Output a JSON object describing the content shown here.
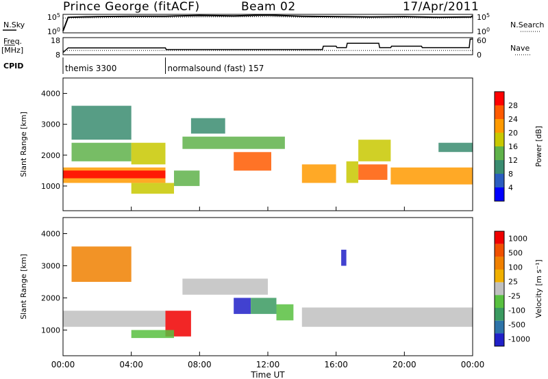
{
  "header": {
    "station": "Prince George (fitACF)",
    "beam": "Beam 02",
    "date": "17/Apr/2011"
  },
  "panel_labels": {
    "nsky": "N.Sky",
    "nsearch": "N.Search",
    "freq": "Freq.",
    "freq_unit": "[MHz]",
    "nave": "Nave",
    "cpid": "CPID"
  },
  "cpid_segments": [
    {
      "label": "themis 3300",
      "start_hour": 0.0
    },
    {
      "label": "normalsound (fast) 157",
      "start_hour": 6.0
    }
  ],
  "x_axis": {
    "title": "Time UT",
    "ticks": [
      "00:00",
      "04:00",
      "08:00",
      "12:00",
      "16:00",
      "20:00",
      "00:00"
    ],
    "range_hours": [
      0,
      24
    ]
  },
  "colors": {
    "power": [
      "#0000ff",
      "#2b5dbf",
      "#3a8c70",
      "#5fb24a",
      "#c8c800",
      "#ff9a00",
      "#ff5a00",
      "#ff0000"
    ],
    "velocity": [
      "#2020c8",
      "#2d73a8",
      "#3a9a60",
      "#58c040",
      "#c0c0c0",
      "#f0b000",
      "#f08000",
      "#f05000",
      "#f00000"
    ]
  },
  "chart_data": [
    {
      "type": "line",
      "name": "sky-noise",
      "y_left_ticks": [
        "10^5",
        "10^0"
      ],
      "y_right_ticks": [
        "10^5",
        "10^0"
      ],
      "series": [
        {
          "name": "N.Sky",
          "x_hours": [
            0,
            0.3,
            2,
            4,
            6,
            8,
            10,
            12,
            14,
            16,
            18,
            20,
            22,
            23.9,
            24
          ],
          "values_log10": [
            0.5,
            4.2,
            4.4,
            4.5,
            4.5,
            4.7,
            4.6,
            4.8,
            4.5,
            4.4,
            4.3,
            4.4,
            4.2,
            4.3,
            4.6
          ]
        },
        {
          "name": "N.Search",
          "x_hours": [
            0,
            2,
            4,
            6,
            8,
            10,
            12,
            14,
            16,
            18,
            20,
            22,
            24
          ],
          "values_log10": [
            4.0,
            4.1,
            4.2,
            4.2,
            4.3,
            4.3,
            4.4,
            4.2,
            4.1,
            4.0,
            4.1,
            4.0,
            4.1
          ]
        }
      ]
    },
    {
      "type": "line",
      "name": "frequency-nave",
      "y_left_ticks": [
        "18",
        "8"
      ],
      "y_right_ticks": [
        "60",
        "0"
      ],
      "series": [
        {
          "name": "Freq.",
          "x_hours": [
            0,
            24
          ],
          "values": [
            10.5,
            10.5
          ]
        },
        {
          "name": "Nave",
          "x_hours": [
            0,
            0.3,
            6.0,
            6.05,
            15.2,
            15.25,
            16.0,
            16.05,
            16.6,
            16.65,
            18.5,
            18.55,
            19.2,
            19.25,
            21.0,
            21.05,
            23.8,
            23.85,
            24
          ],
          "values": [
            8,
            24,
            24,
            18,
            18,
            30,
            30,
            25,
            25,
            40,
            40,
            25,
            25,
            30,
            30,
            25,
            25,
            55,
            55
          ]
        }
      ]
    },
    {
      "type": "heatmap",
      "name": "power",
      "title": "",
      "xlabel": "",
      "ylabel": "Slant Range [km]",
      "y_ticks": [
        1000,
        2000,
        3000,
        4000
      ],
      "ylim": [
        200,
        4500
      ],
      "colorbar_label": "Power [dB]",
      "colorbar_ticks": [
        4,
        8,
        12,
        16,
        20,
        24,
        28
      ],
      "regions": [
        {
          "t": [
            0.0,
            6.0
          ],
          "r": [
            1100,
            1600
          ],
          "level": 5
        },
        {
          "t": [
            0.0,
            6.0
          ],
          "r": [
            1250,
            1500
          ],
          "level": 7
        },
        {
          "t": [
            0.5,
            4.0
          ],
          "r": [
            1800,
            2400
          ],
          "level": 3
        },
        {
          "t": [
            0.5,
            4.0
          ],
          "r": [
            2500,
            3600
          ],
          "level": 2
        },
        {
          "t": [
            4.0,
            6.0
          ],
          "r": [
            1700,
            2400
          ],
          "level": 4
        },
        {
          "t": [
            4.0,
            6.5
          ],
          "r": [
            750,
            1100
          ],
          "level": 4
        },
        {
          "t": [
            6.5,
            8.0
          ],
          "r": [
            1000,
            1500
          ],
          "level": 3
        },
        {
          "t": [
            7.0,
            13.0
          ],
          "r": [
            2200,
            2600
          ],
          "level": 3
        },
        {
          "t": [
            7.5,
            9.5
          ],
          "r": [
            2700,
            3200
          ],
          "level": 2
        },
        {
          "t": [
            10.0,
            12.2
          ],
          "r": [
            1500,
            2100
          ],
          "level": 6
        },
        {
          "t": [
            14.0,
            16.0
          ],
          "r": [
            1100,
            1700
          ],
          "level": 5
        },
        {
          "t": [
            16.6,
            17.3
          ],
          "r": [
            1100,
            1800
          ],
          "level": 4
        },
        {
          "t": [
            17.3,
            19.0
          ],
          "r": [
            1200,
            1700
          ],
          "level": 6
        },
        {
          "t": [
            17.3,
            19.2
          ],
          "r": [
            1800,
            2500
          ],
          "level": 4
        },
        {
          "t": [
            19.2,
            24.0
          ],
          "r": [
            1050,
            1600
          ],
          "level": 5
        },
        {
          "t": [
            22.0,
            24.0
          ],
          "r": [
            2100,
            2400
          ],
          "level": 2
        }
      ]
    },
    {
      "type": "heatmap",
      "name": "velocity",
      "title": "",
      "xlabel": "Time UT",
      "ylabel": "Slant Range [km]",
      "y_ticks": [
        1000,
        2000,
        3000,
        4000
      ],
      "ylim": [
        200,
        4500
      ],
      "colorbar_label": "Velocity [m s⁻¹]",
      "colorbar_ticks": [
        1000,
        500,
        100,
        25,
        -25,
        -100,
        -500,
        -1000
      ],
      "regions": [
        {
          "t": [
            0.0,
            6.0
          ],
          "r": [
            1100,
            1600
          ],
          "level": 4
        },
        {
          "t": [
            0.5,
            4.0
          ],
          "r": [
            2500,
            3600
          ],
          "level": 6
        },
        {
          "t": [
            6.0,
            7.5
          ],
          "r": [
            800,
            1600
          ],
          "level": 8
        },
        {
          "t": [
            4.0,
            6.5
          ],
          "r": [
            750,
            1000
          ],
          "level": 3
        },
        {
          "t": [
            7.0,
            12.0
          ],
          "r": [
            2100,
            2600
          ],
          "level": 4
        },
        {
          "t": [
            10.0,
            11.0
          ],
          "r": [
            1500,
            2000
          ],
          "level": 0
        },
        {
          "t": [
            11.0,
            12.5
          ],
          "r": [
            1500,
            2000
          ],
          "level": 2
        },
        {
          "t": [
            12.5,
            13.5
          ],
          "r": [
            1300,
            1800
          ],
          "level": 3
        },
        {
          "t": [
            14.0,
            24.0
          ],
          "r": [
            1100,
            1700
          ],
          "level": 4
        },
        {
          "t": [
            16.3,
            16.6
          ],
          "r": [
            3000,
            3500
          ],
          "level": 0
        }
      ]
    }
  ]
}
